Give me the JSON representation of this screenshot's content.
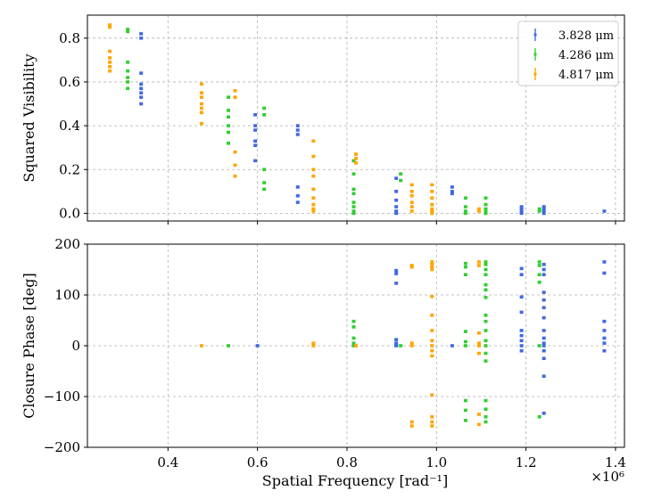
{
  "colors": {
    "blue": "#4169E1",
    "green": "#32CD32",
    "orange": "#FFA500"
  },
  "x_axis": {
    "label": "Spatial Frequency [rad⁻¹]",
    "ticks": [
      "0.4",
      "0.6",
      "0.8",
      "1.0",
      "1.2",
      "1.4"
    ],
    "multiplier": "×10⁶"
  },
  "legend": {
    "placement": "top-right",
    "entries": [
      {
        "label": "3.828 μm",
        "color": "#4169E1"
      },
      {
        "label": "4.286 μm",
        "color": "#32CD32"
      },
      {
        "label": "4.817 μm",
        "color": "#FFA500"
      }
    ]
  },
  "chart_data": [
    {
      "type": "scatter",
      "title": "",
      "xlabel": "Spatial Frequency [rad⁻¹]",
      "ylabel": "Squared Visibility",
      "xlim": [
        0.22,
        1.42
      ],
      "ylim": [
        -0.035,
        0.905
      ],
      "x_scale_label": "×10⁶",
      "grid": true,
      "yticks": [
        "0.0",
        "0.2",
        "0.4",
        "0.6",
        "0.8"
      ],
      "series": [
        {
          "name": "3.828 μm",
          "color": "#4169E1",
          "points": [
            [
              0.34,
              0.82
            ],
            [
              0.34,
              0.8
            ],
            [
              0.34,
              0.64
            ],
            [
              0.34,
              0.59
            ],
            [
              0.34,
              0.57
            ],
            [
              0.34,
              0.55
            ],
            [
              0.34,
              0.53
            ],
            [
              0.34,
              0.5
            ],
            [
              0.595,
              0.45
            ],
            [
              0.595,
              0.4
            ],
            [
              0.595,
              0.38
            ],
            [
              0.595,
              0.33
            ],
            [
              0.595,
              0.31
            ],
            [
              0.595,
              0.24
            ],
            [
              0.69,
              0.4
            ],
            [
              0.69,
              0.38
            ],
            [
              0.69,
              0.36
            ],
            [
              0.69,
              0.12
            ],
            [
              0.69,
              0.08
            ],
            [
              0.69,
              0.05
            ],
            [
              0.91,
              0.16
            ],
            [
              0.91,
              0.1
            ],
            [
              0.91,
              0.06
            ],
            [
              0.91,
              0.03
            ],
            [
              0.91,
              0.01
            ],
            [
              0.91,
              0.0
            ],
            [
              1.035,
              0.12
            ],
            [
              1.035,
              0.1
            ],
            [
              1.035,
              0.09
            ],
            [
              1.19,
              0.03
            ],
            [
              1.19,
              0.02
            ],
            [
              1.19,
              0.01
            ],
            [
              1.19,
              0.0
            ],
            [
              1.24,
              0.03
            ],
            [
              1.24,
              0.02
            ],
            [
              1.24,
              0.01
            ],
            [
              1.24,
              0.0
            ],
            [
              1.375,
              0.01
            ]
          ]
        },
        {
          "name": "4.286 μm",
          "color": "#32CD32",
          "points": [
            [
              0.31,
              0.84
            ],
            [
              0.31,
              0.83
            ],
            [
              0.31,
              0.69
            ],
            [
              0.31,
              0.65
            ],
            [
              0.31,
              0.62
            ],
            [
              0.31,
              0.6
            ],
            [
              0.31,
              0.57
            ],
            [
              0.535,
              0.53
            ],
            [
              0.535,
              0.47
            ],
            [
              0.535,
              0.44
            ],
            [
              0.535,
              0.4
            ],
            [
              0.535,
              0.37
            ],
            [
              0.535,
              0.32
            ],
            [
              0.615,
              0.48
            ],
            [
              0.615,
              0.45
            ],
            [
              0.615,
              0.2
            ],
            [
              0.615,
              0.14
            ],
            [
              0.615,
              0.11
            ],
            [
              0.815,
              0.24
            ],
            [
              0.815,
              0.18
            ],
            [
              0.815,
              0.11
            ],
            [
              0.815,
              0.09
            ],
            [
              0.815,
              0.05
            ],
            [
              0.815,
              0.03
            ],
            [
              0.815,
              0.01
            ],
            [
              0.815,
              0.0
            ],
            [
              0.92,
              0.18
            ],
            [
              0.92,
              0.15
            ],
            [
              1.065,
              0.07
            ],
            [
              1.065,
              0.03
            ],
            [
              1.065,
              0.01
            ],
            [
              1.065,
              0.0
            ],
            [
              1.11,
              0.07
            ],
            [
              1.11,
              0.04
            ],
            [
              1.11,
              0.02
            ],
            [
              1.11,
              0.01
            ],
            [
              1.11,
              0.0
            ],
            [
              1.23,
              0.02
            ],
            [
              1.23,
              0.01
            ]
          ]
        },
        {
          "name": "4.817 μm",
          "color": "#FFA500",
          "points": [
            [
              0.27,
              0.86
            ],
            [
              0.27,
              0.85
            ],
            [
              0.27,
              0.74
            ],
            [
              0.27,
              0.71
            ],
            [
              0.27,
              0.69
            ],
            [
              0.27,
              0.67
            ],
            [
              0.27,
              0.65
            ],
            [
              0.475,
              0.59
            ],
            [
              0.475,
              0.55
            ],
            [
              0.475,
              0.53
            ],
            [
              0.475,
              0.5
            ],
            [
              0.475,
              0.48
            ],
            [
              0.475,
              0.46
            ],
            [
              0.475,
              0.41
            ],
            [
              0.55,
              0.56
            ],
            [
              0.55,
              0.53
            ],
            [
              0.55,
              0.28
            ],
            [
              0.55,
              0.22
            ],
            [
              0.55,
              0.17
            ],
            [
              0.725,
              0.33
            ],
            [
              0.725,
              0.26
            ],
            [
              0.725,
              0.2
            ],
            [
              0.725,
              0.17
            ],
            [
              0.725,
              0.11
            ],
            [
              0.725,
              0.07
            ],
            [
              0.725,
              0.04
            ],
            [
              0.725,
              0.02
            ],
            [
              0.725,
              0.01
            ],
            [
              0.82,
              0.27
            ],
            [
              0.82,
              0.25
            ],
            [
              0.82,
              0.23
            ],
            [
              0.945,
              0.13
            ],
            [
              0.945,
              0.1
            ],
            [
              0.945,
              0.08
            ],
            [
              0.945,
              0.05
            ],
            [
              0.945,
              0.03
            ],
            [
              0.945,
              0.01
            ],
            [
              0.99,
              0.13
            ],
            [
              0.99,
              0.1
            ],
            [
              0.99,
              0.07
            ],
            [
              0.99,
              0.04
            ],
            [
              0.99,
              0.02
            ],
            [
              0.99,
              0.01
            ],
            [
              0.99,
              0.0
            ],
            [
              1.095,
              0.02
            ],
            [
              1.095,
              0.01
            ]
          ]
        }
      ]
    },
    {
      "type": "scatter",
      "title": "",
      "xlabel": "Spatial Frequency [rad⁻¹]",
      "ylabel": "Closure Phase [deg]",
      "xlim": [
        0.22,
        1.42
      ],
      "ylim": [
        -200,
        200
      ],
      "x_scale_label": "×10⁶",
      "grid": true,
      "yticks": [
        "−200",
        "−100",
        "0",
        "100",
        "200"
      ],
      "series": [
        {
          "name": "3.828 μm",
          "color": "#4169E1",
          "points": [
            [
              0.6,
              0
            ],
            [
              0.91,
              148
            ],
            [
              0.91,
              142
            ],
            [
              0.91,
              123
            ],
            [
              0.91,
              12
            ],
            [
              0.91,
              5
            ],
            [
              0.91,
              2
            ],
            [
              0.91,
              0
            ],
            [
              1.035,
              0
            ],
            [
              1.19,
              152
            ],
            [
              1.19,
              140
            ],
            [
              1.19,
              96
            ],
            [
              1.19,
              66
            ],
            [
              1.19,
              30
            ],
            [
              1.19,
              20
            ],
            [
              1.19,
              10
            ],
            [
              1.19,
              0
            ],
            [
              1.19,
              -10
            ],
            [
              1.24,
              160
            ],
            [
              1.24,
              150
            ],
            [
              1.24,
              140
            ],
            [
              1.24,
              105
            ],
            [
              1.24,
              90
            ],
            [
              1.24,
              75
            ],
            [
              1.24,
              55
            ],
            [
              1.24,
              30
            ],
            [
              1.24,
              15
            ],
            [
              1.24,
              5
            ],
            [
              1.24,
              0
            ],
            [
              1.24,
              -10
            ],
            [
              1.24,
              -25
            ],
            [
              1.24,
              -60
            ],
            [
              1.24,
              -133
            ],
            [
              1.375,
              165
            ],
            [
              1.375,
              143
            ],
            [
              1.375,
              48
            ],
            [
              1.375,
              30
            ],
            [
              1.375,
              15
            ],
            [
              1.375,
              5
            ],
            [
              1.375,
              -10
            ]
          ]
        },
        {
          "name": "4.286 μm",
          "color": "#32CD32",
          "points": [
            [
              0.535,
              0
            ],
            [
              0.815,
              48
            ],
            [
              0.815,
              37
            ],
            [
              0.815,
              15
            ],
            [
              0.815,
              5
            ],
            [
              0.815,
              0
            ],
            [
              0.92,
              0
            ],
            [
              1.065,
              162
            ],
            [
              1.065,
              155
            ],
            [
              1.065,
              140
            ],
            [
              1.065,
              28
            ],
            [
              1.065,
              8
            ],
            [
              1.065,
              0
            ],
            [
              1.065,
              -108
            ],
            [
              1.065,
              -127
            ],
            [
              1.065,
              -147
            ],
            [
              1.11,
              165
            ],
            [
              1.11,
              160
            ],
            [
              1.11,
              150
            ],
            [
              1.11,
              140
            ],
            [
              1.11,
              120
            ],
            [
              1.11,
              110
            ],
            [
              1.11,
              95
            ],
            [
              1.11,
              60
            ],
            [
              1.11,
              48
            ],
            [
              1.11,
              30
            ],
            [
              1.11,
              10
            ],
            [
              1.11,
              0
            ],
            [
              1.11,
              -15
            ],
            [
              1.11,
              -30
            ],
            [
              1.11,
              -108
            ],
            [
              1.11,
              -125
            ],
            [
              1.11,
              -140
            ],
            [
              1.11,
              -150
            ],
            [
              1.23,
              165
            ],
            [
              1.23,
              158
            ],
            [
              1.23,
              140
            ],
            [
              1.23,
              125
            ],
            [
              1.23,
              0
            ],
            [
              1.23,
              -140
            ]
          ]
        },
        {
          "name": "4.817 μm",
          "color": "#FFA500",
          "points": [
            [
              0.475,
              0
            ],
            [
              0.725,
              5
            ],
            [
              0.725,
              0
            ],
            [
              0.82,
              0
            ],
            [
              0.945,
              158
            ],
            [
              0.945,
              155
            ],
            [
              0.945,
              5
            ],
            [
              0.945,
              0
            ],
            [
              0.945,
              -150
            ],
            [
              0.945,
              -158
            ],
            [
              0.99,
              165
            ],
            [
              0.99,
              160
            ],
            [
              0.99,
              155
            ],
            [
              0.99,
              150
            ],
            [
              0.99,
              97
            ],
            [
              0.99,
              60
            ],
            [
              0.99,
              30
            ],
            [
              0.99,
              10
            ],
            [
              0.99,
              0
            ],
            [
              0.99,
              -10
            ],
            [
              0.99,
              -20
            ],
            [
              0.99,
              -97
            ],
            [
              0.99,
              -140
            ],
            [
              0.99,
              -150
            ],
            [
              0.99,
              -158
            ],
            [
              1.095,
              165
            ],
            [
              1.095,
              158
            ],
            [
              1.095,
              25
            ],
            [
              1.095,
              5
            ],
            [
              1.095,
              0
            ],
            [
              1.095,
              -15
            ],
            [
              1.095,
              -135
            ],
            [
              1.095,
              -155
            ]
          ]
        }
      ]
    }
  ]
}
